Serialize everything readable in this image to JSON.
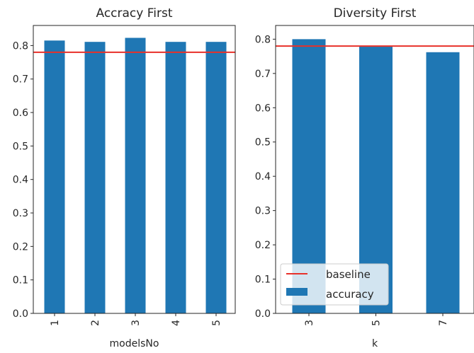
{
  "colors": {
    "bar": "#1f77b4",
    "baseline": "#e8312a",
    "axis": "#262626",
    "background": "#ffffff"
  },
  "chart_data": [
    {
      "type": "bar",
      "title": "Accracy First",
      "xlabel": "modelsNo",
      "ylabel": "",
      "categories": [
        "1",
        "2",
        "3",
        "4",
        "5"
      ],
      "series": [
        {
          "name": "accuracy",
          "values": [
            0.815,
            0.811,
            0.823,
            0.811,
            0.811
          ]
        }
      ],
      "baseline": {
        "name": "baseline",
        "value": 0.78
      },
      "ylim": [
        0,
        0.86
      ],
      "yticks": [
        "0.0",
        "0.1",
        "0.2",
        "0.3",
        "0.4",
        "0.5",
        "0.6",
        "0.7",
        "0.8"
      ],
      "xtick_rotation": "vertical",
      "grid": false,
      "legend": null
    },
    {
      "type": "bar",
      "title": "Diversity First",
      "xlabel": "k",
      "ylabel": "",
      "categories": [
        "3",
        "5",
        "7"
      ],
      "series": [
        {
          "name": "accuracy",
          "values": [
            0.8,
            0.778,
            0.762
          ]
        }
      ],
      "baseline": {
        "name": "baseline",
        "value": 0.78
      },
      "ylim": [
        0,
        0.84
      ],
      "yticks": [
        "0.0",
        "0.1",
        "0.2",
        "0.3",
        "0.4",
        "0.5",
        "0.6",
        "0.7",
        "0.8"
      ],
      "xtick_rotation": "vertical",
      "grid": false,
      "legend": {
        "placement": "lower-left",
        "entries": [
          "baseline",
          "accuracy"
        ]
      }
    }
  ]
}
